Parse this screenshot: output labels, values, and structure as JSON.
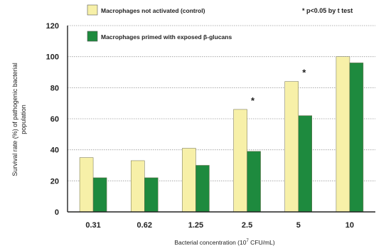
{
  "chart_data": {
    "type": "bar",
    "title": "",
    "xlabel_main": "Bacterial concentration (10",
    "xlabel_sup": "7",
    "xlabel_tail": " CFU/mL)",
    "ylabel_line1": "Survival rate (%) of pathogenic bacterial",
    "ylabel_line2": "population",
    "ylim": [
      0,
      120
    ],
    "yticks": [
      0,
      20,
      40,
      60,
      80,
      100,
      120
    ],
    "grid": true,
    "legend_position": "top",
    "categories": [
      "0.31",
      "0.62",
      "1.25",
      "2.5",
      "5",
      "10"
    ],
    "series": [
      {
        "name": "Macrophages not activated (control)",
        "color": "#f7f0a8",
        "values": [
          35,
          33,
          41,
          66,
          84,
          100
        ]
      },
      {
        "name": "Macrophages primed with exposed β-glucans",
        "color": "#1e8a3e",
        "values": [
          22,
          22,
          30,
          39,
          62,
          96
        ]
      }
    ],
    "significance_markers": [
      "",
      "",
      "",
      "*",
      "*",
      ""
    ],
    "annotation": "* p<0.05 by t test"
  }
}
